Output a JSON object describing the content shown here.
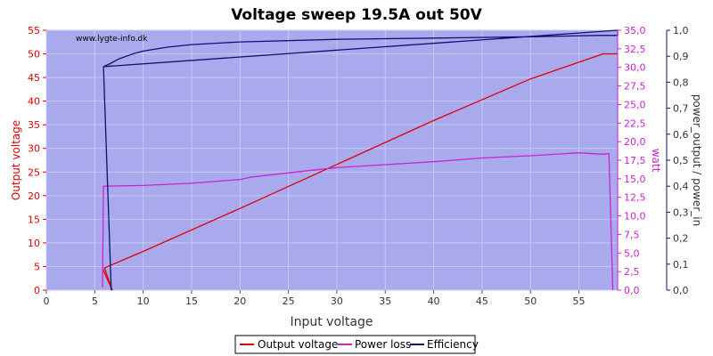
{
  "chart_data": {
    "type": "line",
    "title": "Voltage sweep 19.5A out 50V",
    "watermark": "www.lygte-info.dk",
    "xlabel": "Input voltage",
    "ylabel_left": "Output voltage",
    "ylabel_right1": "watt",
    "ylabel_right2": "power_output / power_in",
    "xlim": [
      0,
      59
    ],
    "ylim_left": [
      0,
      55
    ],
    "ylim_right1": [
      0,
      35
    ],
    "ylim_right2": [
      0,
      1
    ],
    "x_ticks": [
      "0",
      "5",
      "10",
      "15",
      "20",
      "25",
      "30",
      "35",
      "40",
      "45",
      "50",
      "55"
    ],
    "y_left_ticks": [
      "0",
      "5",
      "10",
      "15",
      "20",
      "25",
      "30",
      "35",
      "40",
      "45",
      "50",
      "55"
    ],
    "y_right1_ticks": [
      "0,0",
      "2,5",
      "5,0",
      "7,5",
      "10,0",
      "12,5",
      "15,0",
      "17,5",
      "20,0",
      "22,5",
      "25,0",
      "27,5",
      "30,0",
      "32,5",
      "35,0"
    ],
    "y_right2_ticks": [
      "0,0",
      "0,1",
      "0,2",
      "0,3",
      "0,4",
      "0,5",
      "0,6",
      "0,7",
      "0,8",
      "0,9",
      "1,0"
    ],
    "colors": {
      "plot_bg": "#a9a9ee",
      "grid": "#c9c9f4",
      "output_voltage": "#e00000",
      "power_loss": "#d020d0",
      "efficiency": "#101070",
      "left_axis": "#e00000",
      "right1_axis": "#d020d0",
      "right2_axis": "#101070"
    },
    "legend_position": "bottom-center",
    "series": [
      {
        "name": "Output voltage",
        "axis": "left",
        "color": "#e00000",
        "points": [
          [
            5.8,
            4.6
          ],
          [
            6.8,
            0
          ],
          [
            6.0,
            4.7
          ],
          [
            10,
            8.2
          ],
          [
            20,
            17.3
          ],
          [
            30,
            26.6
          ],
          [
            40,
            35.9
          ],
          [
            50,
            44.7
          ],
          [
            57.5,
            50
          ],
          [
            59,
            50
          ]
        ]
      },
      {
        "name": "Power loss",
        "axis": "right1",
        "color": "#d020d0",
        "points": [
          [
            5.8,
            0.4
          ],
          [
            5.9,
            14.0
          ],
          [
            10,
            14.1
          ],
          [
            15,
            14.4
          ],
          [
            20,
            14.9
          ],
          [
            21,
            15.2
          ],
          [
            25,
            15.8
          ],
          [
            30,
            16.5
          ],
          [
            35,
            16.9
          ],
          [
            40,
            17.3
          ],
          [
            45,
            17.8
          ],
          [
            50,
            18.1
          ],
          [
            55,
            18.5
          ],
          [
            57.5,
            18.3
          ],
          [
            58.1,
            18.4
          ],
          [
            58.5,
            0
          ]
        ]
      },
      {
        "name": "Efficiency",
        "axis": "right2",
        "color": "#101070",
        "points": [
          [
            5.9,
            0.86
          ],
          [
            6.5,
            0.87
          ],
          [
            7.5,
            0.89
          ],
          [
            9,
            0.91
          ],
          [
            10,
            0.92
          ],
          [
            12.5,
            0.935
          ],
          [
            15,
            0.945
          ],
          [
            20,
            0.955
          ],
          [
            30,
            0.965
          ],
          [
            40,
            0.97
          ],
          [
            50,
            0.975
          ],
          [
            57,
            0.98
          ],
          [
            59,
            0.98
          ],
          [
            59,
            1.0
          ],
          [
            5.9,
            0.86
          ],
          [
            6.7,
            0
          ]
        ]
      }
    ]
  }
}
